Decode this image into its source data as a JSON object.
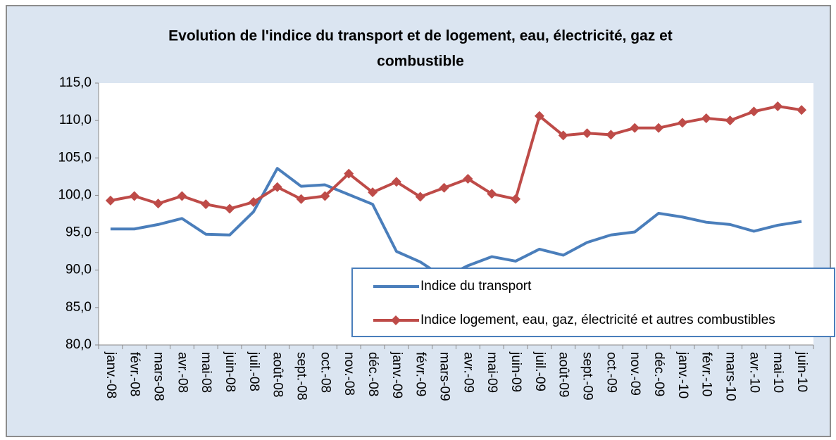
{
  "chart_data": {
    "type": "line",
    "title": [
      "Evolution de l'indice du transport et de logement, eau, électricité, gaz et",
      "combustible"
    ],
    "categories": [
      "janv.-08",
      "févr.-08",
      "mars-08",
      "avr.-08",
      "mai-08",
      "juin-08",
      "juil.-08",
      "août-08",
      "sept.-08",
      "oct.-08",
      "nov.-08",
      "déc.-08",
      "janv.-09",
      "févr.-09",
      "mars-09",
      "avr.-09",
      "mai-09",
      "juin-09",
      "juil.-09",
      "août-09",
      "sept.-09",
      "oct.-09",
      "nov.-09",
      "déc.-09",
      "janv.-10",
      "févr.-10",
      "mars-10",
      "avr.-10",
      "mai-10",
      "juin-10"
    ],
    "series": [
      {
        "name": "Indice du transport",
        "color": "#4a7ebb",
        "marker": false,
        "values": [
          95.5,
          95.5,
          96.1,
          96.9,
          94.8,
          94.7,
          97.8,
          103.6,
          101.2,
          101.4,
          100.1,
          98.8,
          92.5,
          91.1,
          89.0,
          90.6,
          91.8,
          91.2,
          92.8,
          92.0,
          93.7,
          94.7,
          95.1,
          97.6,
          97.1,
          96.4,
          96.1,
          95.2,
          96.0,
          96.5
        ]
      },
      {
        "name": "Indice logement, eau, gaz, électricité et autres combustibles",
        "color": "#be4b48",
        "marker": true,
        "values": [
          99.3,
          99.9,
          98.9,
          99.9,
          98.8,
          98.2,
          99.1,
          101.1,
          99.5,
          99.9,
          102.9,
          100.4,
          101.8,
          99.8,
          101.0,
          102.2,
          100.2,
          99.5,
          110.6,
          108.0,
          108.3,
          108.1,
          109.0,
          109.0,
          109.7,
          110.3,
          110.0,
          111.2,
          111.9,
          111.4
        ]
      }
    ],
    "ylim": [
      80,
      115
    ],
    "yticks": [
      {
        "value": 80,
        "label": "80,0"
      },
      {
        "value": 85,
        "label": "85,0"
      },
      {
        "value": 90,
        "label": "90,0"
      },
      {
        "value": 95,
        "label": "95,0"
      },
      {
        "value": 100,
        "label": "100,0"
      },
      {
        "value": 105,
        "label": "105,0"
      },
      {
        "value": 110,
        "label": "110,0"
      },
      {
        "value": 115,
        "label": "115,0"
      }
    ],
    "legend": "lower right"
  }
}
